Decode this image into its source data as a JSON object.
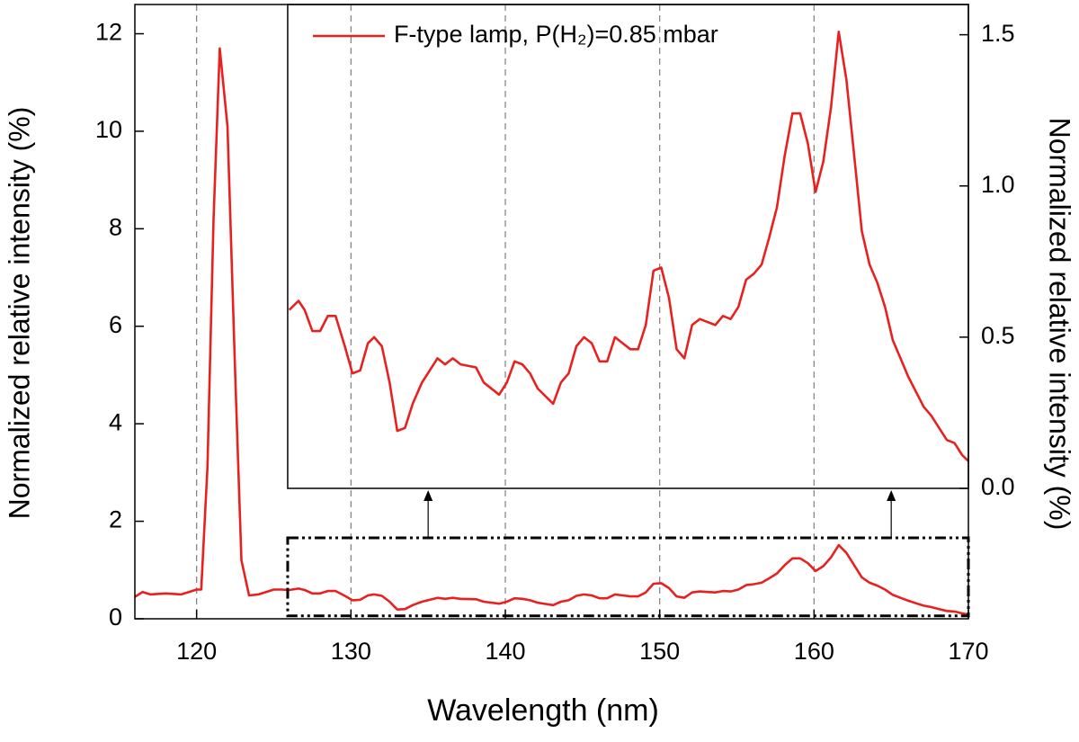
{
  "chart_data": {
    "type": "line",
    "xlabel": "Wavelength (nm)",
    "ylabel": "Normalized relative intensity (%)",
    "y2label": "Normalized relative intensity (%)",
    "xlim": [
      116,
      170
    ],
    "xticks": [
      120,
      130,
      140,
      150,
      160,
      170
    ],
    "ylim": [
      0,
      12.6
    ],
    "yticks": [
      0,
      2,
      4,
      6,
      8,
      10,
      12
    ],
    "grid": true,
    "legend": "top",
    "x": [
      116,
      116.5,
      117,
      118,
      119,
      119.5,
      120,
      120.3,
      120.7,
      121.1,
      121.5,
      122,
      122.5,
      122.9,
      123.4,
      124,
      124.5,
      125,
      125.5,
      126.0,
      126.6,
      127.0,
      127.5,
      128.0,
      128.5,
      129.0,
      129.6,
      130.1,
      130.6,
      131.1,
      131.5,
      132.0,
      132.5,
      133.0,
      133.5,
      134.0,
      134.6,
      135.1,
      135.6,
      136.1,
      136.6,
      137.1,
      138.1,
      138.6,
      139.6,
      140.1,
      140.6,
      141.1,
      141.6,
      142.1,
      143.1,
      143.6,
      144.1,
      144.6,
      145.1,
      145.6,
      146.1,
      146.6,
      147.1,
      147.6,
      148.1,
      148.6,
      149.1,
      149.6,
      150.1,
      150.6,
      151.1,
      151.6,
      152.1,
      152.6,
      153.1,
      153.6,
      154.1,
      154.6,
      155.1,
      155.6,
      156.1,
      156.6,
      157.1,
      157.6,
      158.1,
      158.6,
      159.1,
      159.6,
      160.1,
      160.6,
      161.1,
      161.6,
      162.1,
      162.6,
      163.1,
      163.6,
      164.1,
      164.6,
      165.1,
      165.6,
      166.1,
      166.6,
      167.1,
      167.6,
      168.1,
      168.6,
      169.1,
      169.6,
      170.0
    ],
    "series": [
      {
        "name": "F-type lamp, P(H₂)=0.85 mbar",
        "color": "#e8211f",
        "values": [
          0.45,
          0.55,
          0.5,
          0.52,
          0.5,
          0.55,
          0.6,
          0.6,
          3.1,
          8.2,
          11.7,
          10.1,
          5.0,
          1.2,
          0.48,
          0.5,
          0.55,
          0.6,
          0.6,
          0.59,
          0.62,
          0.59,
          0.52,
          0.52,
          0.57,
          0.57,
          0.47,
          0.38,
          0.39,
          0.48,
          0.5,
          0.47,
          0.35,
          0.19,
          0.2,
          0.28,
          0.35,
          0.39,
          0.43,
          0.41,
          0.43,
          0.41,
          0.4,
          0.35,
          0.31,
          0.35,
          0.42,
          0.41,
          0.38,
          0.33,
          0.28,
          0.35,
          0.38,
          0.47,
          0.5,
          0.48,
          0.42,
          0.42,
          0.5,
          0.48,
          0.46,
          0.46,
          0.54,
          0.72,
          0.73,
          0.63,
          0.46,
          0.43,
          0.54,
          0.56,
          0.55,
          0.54,
          0.57,
          0.56,
          0.6,
          0.69,
          0.71,
          0.74,
          0.83,
          0.93,
          1.1,
          1.24,
          1.24,
          1.14,
          0.98,
          1.08,
          1.26,
          1.51,
          1.35,
          1.1,
          0.85,
          0.74,
          0.68,
          0.6,
          0.49,
          0.43,
          0.37,
          0.32,
          0.27,
          0.24,
          0.2,
          0.16,
          0.15,
          0.11,
          0.09
        ]
      }
    ],
    "inset": {
      "xlim": [
        125.9,
        170
      ],
      "y2lim": [
        0,
        1.6
      ],
      "y2ticks": [
        {
          "value": 0,
          "label": "0.0"
        },
        0.5,
        {
          "value": 1,
          "label": "1.0"
        },
        1.5
      ]
    },
    "zoom_box": {
      "x": [
        125.9,
        170
      ],
      "y": [
        0.06,
        1.66
      ]
    },
    "arrows_x": [
      135,
      165
    ]
  }
}
